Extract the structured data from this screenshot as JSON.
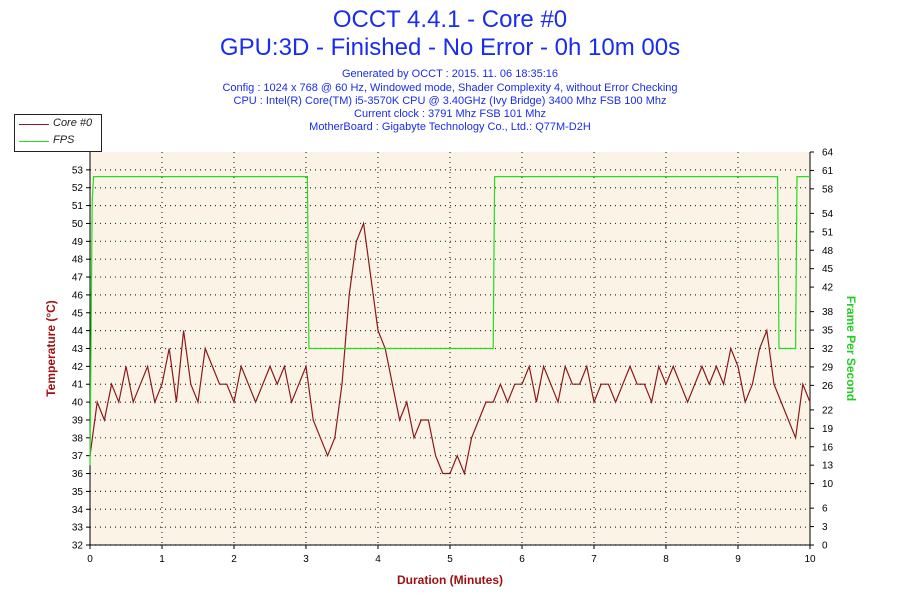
{
  "header": {
    "title": "OCCT 4.4.1 - Core #0",
    "subtitle": "GPU:3D - Finished - No Error - 0h 10m 00s",
    "info_lines": [
      "Generated by OCCT : 2015. 11. 06 18:35:16",
      "Config : 1024 x 768 @ 60 Hz, Windowed mode, Shader Complexity 4, without Error Checking",
      "CPU : Intel(R) Core(TM) i5-3570K CPU @ 3.40GHz (Ivy Bridge) 3400 Mhz FSB 100 Mhz",
      "Current clock : 3791 Mhz FSB 101 Mhz",
      "MotherBoard : Gigabyte Technology Co., Ltd.: Q77M-D2H"
    ]
  },
  "legend": {
    "items": [
      {
        "label": "Core #0",
        "color": "#8b1a1a"
      },
      {
        "label": "FPS",
        "color": "#22dd22"
      }
    ]
  },
  "colors": {
    "plot_bg": "#fbf3e6",
    "grid": "#333333",
    "temp_line": "#8b1a1a",
    "fps_line": "#22dd22",
    "axis_label": "#a01010",
    "fps_label": "#22cc22"
  },
  "chart_data": {
    "type": "line",
    "xlabel": "Duration (Minutes)",
    "ylabel": "Temperature (°C)",
    "y2label": "Frame Per Second",
    "xlim": [
      0,
      10
    ],
    "ylim": [
      32,
      54
    ],
    "y2lim": [
      0,
      64
    ],
    "x_ticks": [
      "0",
      "1",
      "2",
      "3",
      "4",
      "5",
      "6",
      "7",
      "8",
      "9",
      "10"
    ],
    "y_ticks": [
      "32",
      "33",
      "34",
      "35",
      "36",
      "37",
      "38",
      "39",
      "40",
      "41",
      "42",
      "43",
      "44",
      "45",
      "46",
      "47",
      "48",
      "49",
      "50",
      "51",
      "52",
      "53"
    ],
    "y2_ticks": [
      "0",
      "3",
      "6",
      "10",
      "13",
      "16",
      "19",
      "22",
      "26",
      "29",
      "32",
      "35",
      "38",
      "42",
      "45",
      "48",
      "51",
      "54",
      "58",
      "61",
      "64"
    ],
    "grid": true,
    "legend_position": "top-left",
    "series": [
      {
        "name": "Core #0",
        "axis": "left",
        "x": [
          0.0,
          0.1,
          0.2,
          0.3,
          0.4,
          0.5,
          0.6,
          0.7,
          0.8,
          0.9,
          1.0,
          1.1,
          1.2,
          1.3,
          1.4,
          1.5,
          1.6,
          1.7,
          1.8,
          1.9,
          2.0,
          2.1,
          2.2,
          2.3,
          2.4,
          2.5,
          2.6,
          2.7,
          2.8,
          2.9,
          3.0,
          3.1,
          3.2,
          3.3,
          3.4,
          3.5,
          3.6,
          3.7,
          3.8,
          3.9,
          4.0,
          4.1,
          4.2,
          4.3,
          4.4,
          4.5,
          4.6,
          4.7,
          4.8,
          4.9,
          5.0,
          5.1,
          5.2,
          5.3,
          5.4,
          5.5,
          5.6,
          5.7,
          5.8,
          5.9,
          6.0,
          6.1,
          6.2,
          6.3,
          6.4,
          6.5,
          6.6,
          6.7,
          6.8,
          6.9,
          7.0,
          7.1,
          7.2,
          7.3,
          7.4,
          7.5,
          7.6,
          7.7,
          7.8,
          7.9,
          8.0,
          8.1,
          8.2,
          8.3,
          8.4,
          8.5,
          8.6,
          8.7,
          8.8,
          8.9,
          9.0,
          9.1,
          9.2,
          9.3,
          9.4,
          9.5,
          9.6,
          9.7,
          9.8,
          9.9,
          10.0
        ],
        "values": [
          37,
          40,
          39,
          41,
          40,
          42,
          40,
          41,
          42,
          40,
          41,
          43,
          40,
          44,
          41,
          40,
          43,
          42,
          41,
          41,
          40,
          42,
          41,
          40,
          41,
          42,
          41,
          42,
          40,
          41,
          42,
          39,
          38,
          37,
          38,
          41,
          46,
          49,
          50,
          47,
          44,
          43,
          41,
          39,
          40,
          38,
          39,
          39,
          37,
          36,
          36,
          37,
          36,
          38,
          39,
          40,
          40,
          41,
          40,
          41,
          41,
          42,
          40,
          42,
          41,
          40,
          42,
          41,
          41,
          42,
          40,
          41,
          41,
          40,
          41,
          42,
          41,
          41,
          40,
          42,
          41,
          42,
          41,
          40,
          41,
          42,
          41,
          42,
          41,
          43,
          42,
          40,
          41,
          43,
          44,
          41,
          40,
          39,
          38,
          41,
          40
        ]
      },
      {
        "name": "FPS",
        "axis": "right",
        "x": [
          0.0,
          0.03,
          0.05,
          3.02,
          3.04,
          3.2,
          3.6,
          4.0,
          4.5,
          5.0,
          5.58,
          5.6,
          5.62,
          9.55,
          9.57,
          9.8,
          9.82,
          10.0
        ],
        "values": [
          13,
          56,
          60,
          60,
          32,
          32,
          32,
          32,
          32,
          32,
          32,
          32,
          60,
          60,
          32,
          32,
          60,
          60
        ]
      }
    ]
  }
}
